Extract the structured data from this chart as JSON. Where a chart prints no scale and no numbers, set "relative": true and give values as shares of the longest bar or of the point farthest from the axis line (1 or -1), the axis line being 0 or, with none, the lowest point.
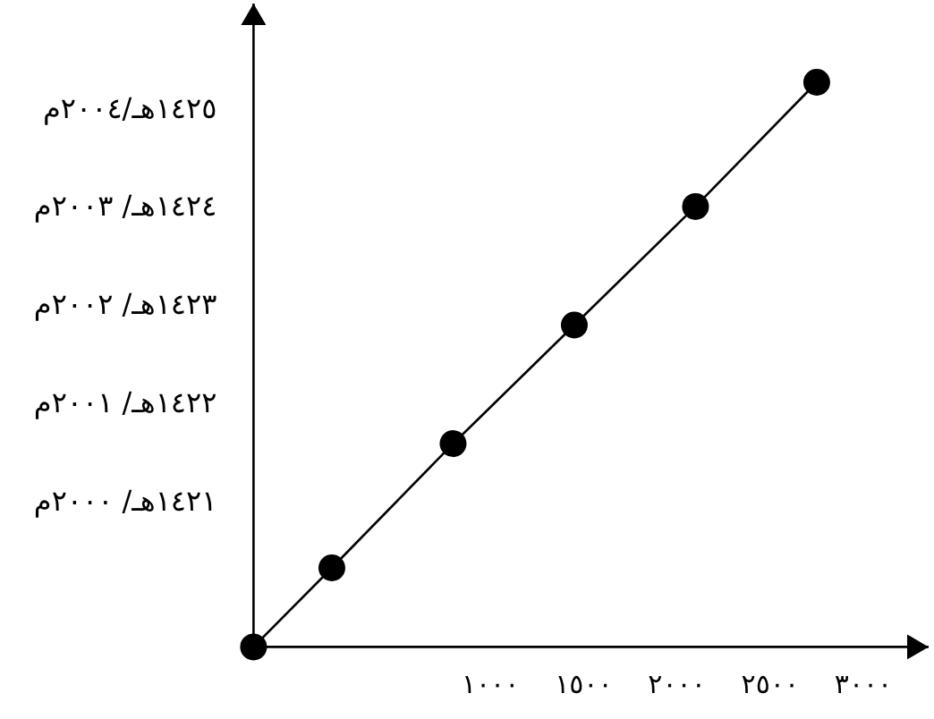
{
  "chart_data": {
    "type": "line",
    "relative": true,
    "x": [
      -270,
      150,
      800,
      1450,
      2100,
      2750
    ],
    "series": [
      {
        "color": "#000000",
        "values": [
          0,
          0.14,
          0.36,
          0.57,
          0.78,
          1
        ]
      }
    ],
    "xlim": [
      -270,
      3350
    ],
    "xticks": [
      {
        "value": 1000,
        "label": "١٠٠٠"
      },
      {
        "value": 1500,
        "label": "١٥٠٠"
      },
      {
        "value": 2000,
        "label": "٢٠٠٠"
      },
      {
        "value": 2500,
        "label": "٢٥٠٠"
      },
      {
        "value": 3000,
        "label": "٣٠٠٠"
      }
    ],
    "annotations": [
      "١٤٢٥هـ/٢٠٠٤م",
      "١٤٢٤هـ/ ٢٠٠٣م",
      "١٤٢٣هـ/ ٢٠٠٢م",
      "١٤٢٢هـ/ ٢٠٠١م",
      "١٤٢١هـ/ ٢٠٠٠م"
    ],
    "marker": "circle",
    "line_style": "solid"
  }
}
